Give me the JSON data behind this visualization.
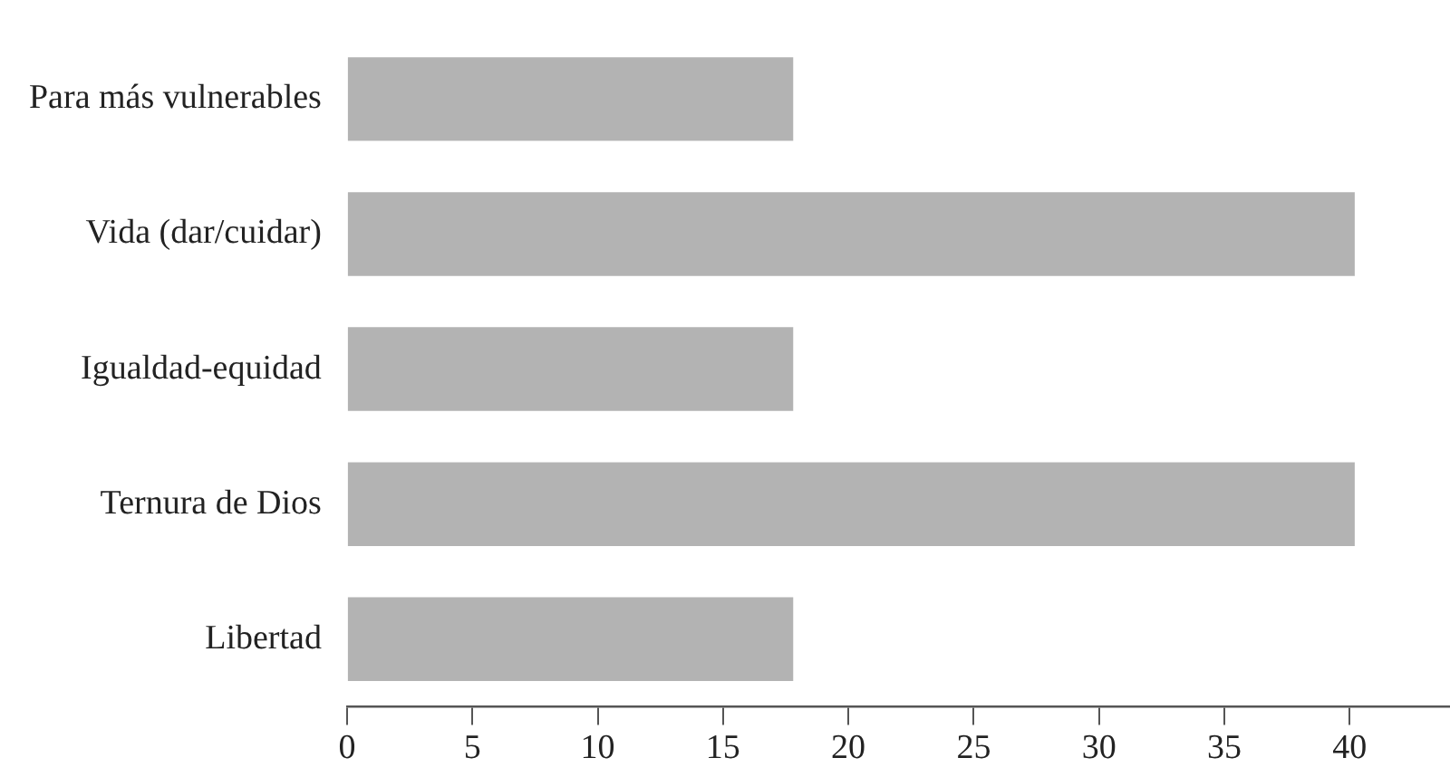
{
  "chart_data": {
    "type": "bar",
    "orientation": "horizontal",
    "categories": [
      "Para más vulnerables",
      "Vida (dar/cuidar)",
      "Igualdad-equidad",
      "Ternura de Dios",
      "Libertad"
    ],
    "values": [
      17.8,
      40.2,
      17.8,
      40.2,
      17.8
    ],
    "color": "#b3b3b3",
    "xlim": [
      0,
      44
    ],
    "xticks": [
      0,
      5,
      10,
      15,
      20,
      25,
      30,
      35,
      40
    ],
    "grid": false,
    "legend": false
  }
}
